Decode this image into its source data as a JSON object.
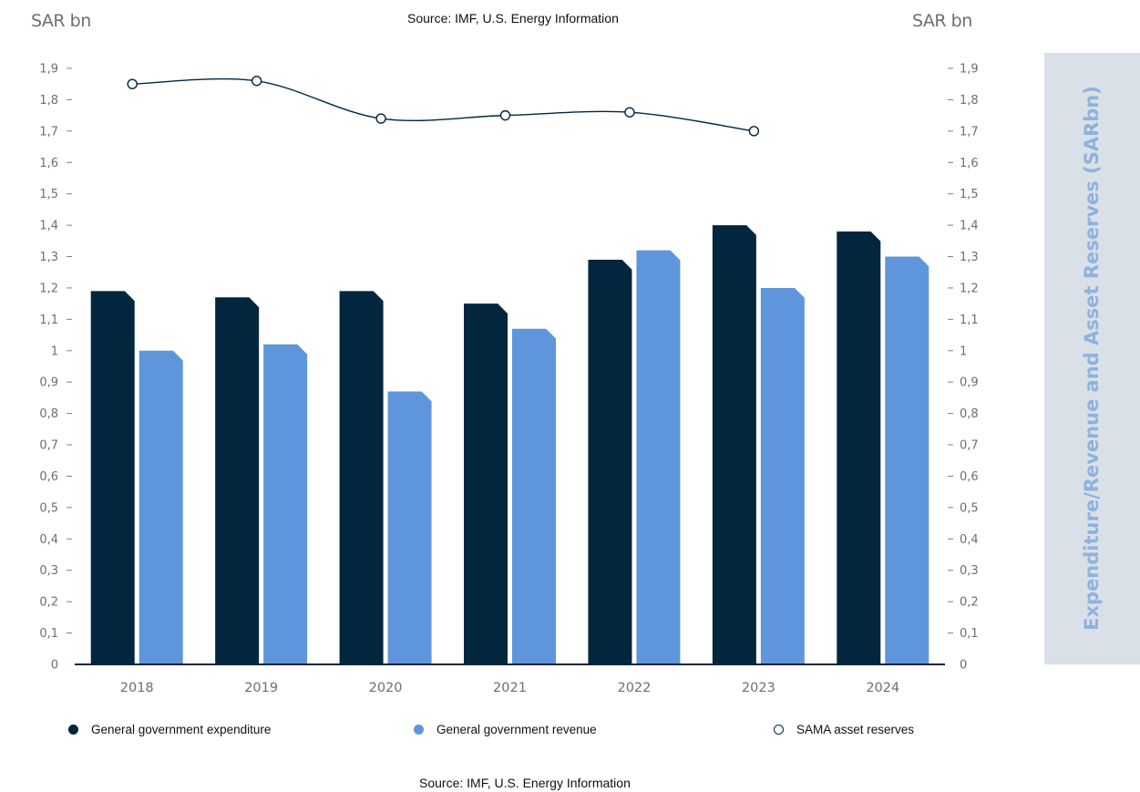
{
  "source_top": "Source: IMF, U.S. Energy Information",
  "source_bottom": "Source: IMF, U.S. Energy Information",
  "side_panel": {
    "title": "Expenditure/Revenue and Asset Reserves (SARbn)"
  },
  "colors": {
    "expenditure": "#01263d",
    "revenue": "#5f96db",
    "reserves_line": "#01263d",
    "side_panel_bg": "#d9e0e8",
    "side_panel_text": "#8fb2dd",
    "axis_line": "#01263d"
  },
  "chart_data": {
    "type": "bar",
    "categories": [
      "2018",
      "2019",
      "2020",
      "2021",
      "2022",
      "2023",
      "2024"
    ],
    "y_left_label": "SAR bn",
    "y_right_label": "SAR bn",
    "ylim": [
      0,
      1.9
    ],
    "y_ticks": [
      "0",
      "0,1",
      "0,2",
      "0,3",
      "0,4",
      "0,5",
      "0,6",
      "0,7",
      "0,8",
      "0,9",
      "1",
      "1,1",
      "1,2",
      "1,3",
      "1,4",
      "1,5",
      "1,6",
      "1,7",
      "1,8",
      "1,9"
    ],
    "grid": false,
    "legend_position": "bottom",
    "series": [
      {
        "name": "General government expenditure",
        "type": "bar",
        "values": [
          1.19,
          1.17,
          1.19,
          1.15,
          1.29,
          1.4,
          1.38
        ]
      },
      {
        "name": "General government revenue",
        "type": "bar",
        "values": [
          1.0,
          1.02,
          0.87,
          1.07,
          1.32,
          1.2,
          1.3
        ]
      },
      {
        "name": "SAMA asset reserves",
        "type": "line",
        "marker": "open-circle",
        "smooth": true,
        "values": [
          1.85,
          1.86,
          1.74,
          1.75,
          1.76,
          1.7,
          null
        ]
      }
    ]
  }
}
